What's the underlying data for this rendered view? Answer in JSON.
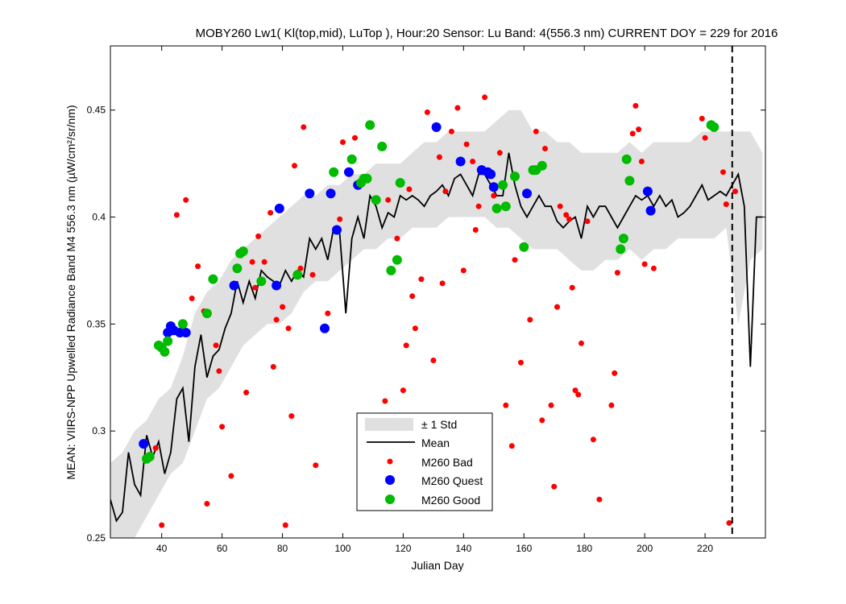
{
  "chart_data": {
    "type": "scatter",
    "title": "MOBY260   Lw1( Kl(top,mid), LuTop ),   Hour:20 Sensor: Lu Band: 4(556.3 nm)   CURRENT DOY = 229 for 2016",
    "xlabel": "Julian Day",
    "ylabel": "MEAN: VIIRS-NPP Upwelled Radiance Band M4 556.3 nm (µW/cm²/sr/nm)",
    "xlim": [
      23,
      240
    ],
    "ylim": [
      0.25,
      0.48
    ],
    "xticks": [
      40,
      60,
      80,
      100,
      120,
      140,
      160,
      180,
      200,
      220
    ],
    "yticks": [
      0.25,
      0.3,
      0.35,
      0.4,
      0.45
    ],
    "ytick_labels": [
      "0.25",
      "0.3",
      "0.35",
      "0.4",
      "0.45"
    ],
    "current_doy": 229,
    "legend_position": "bottom-center",
    "legend": [
      "± 1 Std",
      "Mean",
      "M260 Bad",
      "M260 Quest",
      "M260 Good"
    ],
    "colors": {
      "std_band": "#e0e0e0",
      "mean": "#000000",
      "bad": "#ff0000",
      "quest": "#0000ff",
      "good": "#00bb00"
    },
    "series": [
      {
        "name": "Mean",
        "kind": "line",
        "x": [
          23,
          25,
          27,
          29,
          31,
          33,
          35,
          37,
          39,
          41,
          43,
          45,
          47,
          49,
          51,
          53,
          55,
          57,
          59,
          61,
          63,
          65,
          67,
          69,
          71,
          73,
          75,
          77,
          79,
          81,
          83,
          85,
          87,
          89,
          91,
          93,
          95,
          97,
          99,
          101,
          103,
          105,
          107,
          109,
          111,
          113,
          115,
          117,
          119,
          121,
          123,
          125,
          127,
          129,
          131,
          133,
          135,
          137,
          139,
          141,
          143,
          145,
          147,
          149,
          151,
          153,
          155,
          157,
          159,
          161,
          163,
          165,
          167,
          169,
          171,
          173,
          175,
          177,
          179,
          181,
          183,
          185,
          187,
          189,
          191,
          193,
          195,
          197,
          199,
          201,
          203,
          205,
          207,
          209,
          211,
          213,
          215,
          217,
          219,
          221,
          223,
          225,
          227,
          229,
          231,
          233,
          235,
          237,
          239
        ],
        "y": [
          0.268,
          0.258,
          0.262,
          0.29,
          0.275,
          0.27,
          0.298,
          0.288,
          0.295,
          0.28,
          0.29,
          0.315,
          0.32,
          0.295,
          0.33,
          0.345,
          0.325,
          0.335,
          0.338,
          0.348,
          0.355,
          0.37,
          0.36,
          0.37,
          0.362,
          0.375,
          0.372,
          0.37,
          0.368,
          0.375,
          0.37,
          0.375,
          0.372,
          0.39,
          0.385,
          0.39,
          0.38,
          0.395,
          0.392,
          0.355,
          0.39,
          0.4,
          0.39,
          0.41,
          0.405,
          0.395,
          0.402,
          0.4,
          0.41,
          0.408,
          0.41,
          0.408,
          0.405,
          0.41,
          0.412,
          0.415,
          0.41,
          0.418,
          0.42,
          0.415,
          0.41,
          0.42,
          0.42,
          0.415,
          0.41,
          0.41,
          0.43,
          0.415,
          0.405,
          0.4,
          0.405,
          0.41,
          0.405,
          0.405,
          0.398,
          0.395,
          0.398,
          0.4,
          0.39,
          0.405,
          0.4,
          0.405,
          0.405,
          0.4,
          0.395,
          0.4,
          0.405,
          0.41,
          0.408,
          0.41,
          0.405,
          0.41,
          0.405,
          0.408,
          0.4,
          0.402,
          0.405,
          0.41,
          0.415,
          0.408,
          0.41,
          0.412,
          0.41,
          0.415,
          0.42,
          0.405,
          0.33,
          0.4,
          0.4
        ]
      },
      {
        "name": "± 1 Std",
        "kind": "band",
        "x": [
          23,
          27,
          31,
          35,
          39,
          43,
          47,
          51,
          55,
          59,
          63,
          67,
          71,
          75,
          79,
          83,
          87,
          91,
          95,
          99,
          103,
          107,
          111,
          115,
          119,
          123,
          127,
          131,
          135,
          139,
          143,
          147,
          151,
          155,
          159,
          163,
          167,
          171,
          175,
          179,
          183,
          187,
          191,
          195,
          199,
          203,
          207,
          211,
          215,
          219,
          223,
          227,
          231,
          235,
          239
        ],
        "lower": [
          0.25,
          0.25,
          0.25,
          0.26,
          0.27,
          0.28,
          0.285,
          0.3,
          0.315,
          0.32,
          0.33,
          0.34,
          0.345,
          0.35,
          0.35,
          0.355,
          0.365,
          0.37,
          0.37,
          0.375,
          0.38,
          0.385,
          0.385,
          0.39,
          0.39,
          0.395,
          0.395,
          0.395,
          0.4,
          0.4,
          0.4,
          0.4,
          0.395,
          0.395,
          0.39,
          0.385,
          0.385,
          0.385,
          0.38,
          0.375,
          0.375,
          0.38,
          0.38,
          0.385,
          0.38,
          0.385,
          0.385,
          0.39,
          0.39,
          0.39,
          0.39,
          0.395,
          0.35,
          0.38,
          0.385
        ],
        "upper": [
          0.285,
          0.29,
          0.3,
          0.305,
          0.315,
          0.32,
          0.335,
          0.355,
          0.365,
          0.37,
          0.38,
          0.385,
          0.39,
          0.395,
          0.4,
          0.405,
          0.41,
          0.41,
          0.415,
          0.415,
          0.42,
          0.42,
          0.425,
          0.425,
          0.425,
          0.43,
          0.435,
          0.435,
          0.44,
          0.44,
          0.44,
          0.44,
          0.445,
          0.45,
          0.45,
          0.44,
          0.44,
          0.435,
          0.435,
          0.43,
          0.43,
          0.43,
          0.43,
          0.435,
          0.43,
          0.435,
          0.435,
          0.435,
          0.435,
          0.44,
          0.44,
          0.44,
          0.44,
          0.44,
          0.43
        ]
      },
      {
        "name": "M260 Bad",
        "kind": "points",
        "points": [
          [
            38,
            0.292
          ],
          [
            40,
            0.256
          ],
          [
            45,
            0.401
          ],
          [
            48,
            0.408
          ],
          [
            50,
            0.362
          ],
          [
            52,
            0.377
          ],
          [
            54,
            0.356
          ],
          [
            55,
            0.266
          ],
          [
            58,
            0.34
          ],
          [
            59,
            0.328
          ],
          [
            60,
            0.302
          ],
          [
            63,
            0.279
          ],
          [
            68,
            0.318
          ],
          [
            70,
            0.379
          ],
          [
            71,
            0.367
          ],
          [
            72,
            0.391
          ],
          [
            74,
            0.379
          ],
          [
            76,
            0.402
          ],
          [
            77,
            0.33
          ],
          [
            78,
            0.352
          ],
          [
            80,
            0.358
          ],
          [
            81,
            0.256
          ],
          [
            82,
            0.348
          ],
          [
            83,
            0.307
          ],
          [
            84,
            0.424
          ],
          [
            86,
            0.376
          ],
          [
            87,
            0.442
          ],
          [
            90,
            0.373
          ],
          [
            91,
            0.284
          ],
          [
            95,
            0.355
          ],
          [
            99,
            0.399
          ],
          [
            100,
            0.435
          ],
          [
            104,
            0.437
          ],
          [
            114,
            0.314
          ],
          [
            115,
            0.408
          ],
          [
            118,
            0.39
          ],
          [
            120,
            0.319
          ],
          [
            121,
            0.34
          ],
          [
            122,
            0.413
          ],
          [
            123,
            0.363
          ],
          [
            124,
            0.348
          ],
          [
            126,
            0.371
          ],
          [
            128,
            0.449
          ],
          [
            130,
            0.333
          ],
          [
            132,
            0.428
          ],
          [
            133,
            0.369
          ],
          [
            134,
            0.412
          ],
          [
            136,
            0.44
          ],
          [
            138,
            0.451
          ],
          [
            140,
            0.375
          ],
          [
            141,
            0.434
          ],
          [
            143,
            0.426
          ],
          [
            144,
            0.394
          ],
          [
            145,
            0.405
          ],
          [
            147,
            0.456
          ],
          [
            150,
            0.41
          ],
          [
            152,
            0.43
          ],
          [
            154,
            0.312
          ],
          [
            156,
            0.293
          ],
          [
            157,
            0.38
          ],
          [
            159,
            0.332
          ],
          [
            162,
            0.352
          ],
          [
            164,
            0.44
          ],
          [
            166,
            0.305
          ],
          [
            167,
            0.432
          ],
          [
            169,
            0.312
          ],
          [
            170,
            0.274
          ],
          [
            171,
            0.358
          ],
          [
            172,
            0.405
          ],
          [
            174,
            0.401
          ],
          [
            175,
            0.399
          ],
          [
            176,
            0.367
          ],
          [
            177,
            0.319
          ],
          [
            178,
            0.317
          ],
          [
            179,
            0.341
          ],
          [
            181,
            0.398
          ],
          [
            183,
            0.296
          ],
          [
            185,
            0.268
          ],
          [
            189,
            0.312
          ],
          [
            190,
            0.327
          ],
          [
            191,
            0.374
          ],
          [
            196,
            0.439
          ],
          [
            197,
            0.452
          ],
          [
            198,
            0.441
          ],
          [
            199,
            0.426
          ],
          [
            200,
            0.378
          ],
          [
            203,
            0.376
          ],
          [
            219,
            0.446
          ],
          [
            220,
            0.437
          ],
          [
            226,
            0.421
          ],
          [
            227,
            0.406
          ],
          [
            228,
            0.257
          ],
          [
            230,
            0.412
          ]
        ]
      },
      {
        "name": "M260 Quest",
        "kind": "points",
        "points": [
          [
            34,
            0.294
          ],
          [
            42,
            0.346
          ],
          [
            43,
            0.349
          ],
          [
            44,
            0.347
          ],
          [
            46,
            0.346
          ],
          [
            48,
            0.346
          ],
          [
            64,
            0.368
          ],
          [
            78,
            0.368
          ],
          [
            79,
            0.404
          ],
          [
            89,
            0.411
          ],
          [
            94,
            0.348
          ],
          [
            96,
            0.411
          ],
          [
            98,
            0.394
          ],
          [
            102,
            0.421
          ],
          [
            105,
            0.415
          ],
          [
            131,
            0.442
          ],
          [
            139,
            0.426
          ],
          [
            146,
            0.422
          ],
          [
            148,
            0.421
          ],
          [
            149,
            0.42
          ],
          [
            150,
            0.414
          ],
          [
            161,
            0.411
          ],
          [
            201,
            0.412
          ],
          [
            202,
            0.403
          ]
        ]
      },
      {
        "name": "M260 Good",
        "kind": "points",
        "points": [
          [
            35,
            0.287
          ],
          [
            36,
            0.288
          ],
          [
            39,
            0.34
          ],
          [
            40,
            0.339
          ],
          [
            41,
            0.337
          ],
          [
            42,
            0.342
          ],
          [
            47,
            0.35
          ],
          [
            55,
            0.355
          ],
          [
            57,
            0.371
          ],
          [
            65,
            0.376
          ],
          [
            66,
            0.383
          ],
          [
            67,
            0.384
          ],
          [
            73,
            0.37
          ],
          [
            85,
            0.373
          ],
          [
            97,
            0.421
          ],
          [
            103,
            0.427
          ],
          [
            106,
            0.416
          ],
          [
            107,
            0.418
          ],
          [
            108,
            0.418
          ],
          [
            109,
            0.443
          ],
          [
            111,
            0.408
          ],
          [
            113,
            0.433
          ],
          [
            116,
            0.375
          ],
          [
            118,
            0.38
          ],
          [
            119,
            0.416
          ],
          [
            151,
            0.404
          ],
          [
            153,
            0.415
          ],
          [
            154,
            0.405
          ],
          [
            157,
            0.419
          ],
          [
            160,
            0.386
          ],
          [
            163,
            0.422
          ],
          [
            164,
            0.422
          ],
          [
            166,
            0.424
          ],
          [
            192,
            0.385
          ],
          [
            193,
            0.39
          ],
          [
            194,
            0.427
          ],
          [
            195,
            0.417
          ],
          [
            222,
            0.443
          ],
          [
            223,
            0.442
          ]
        ]
      }
    ]
  }
}
